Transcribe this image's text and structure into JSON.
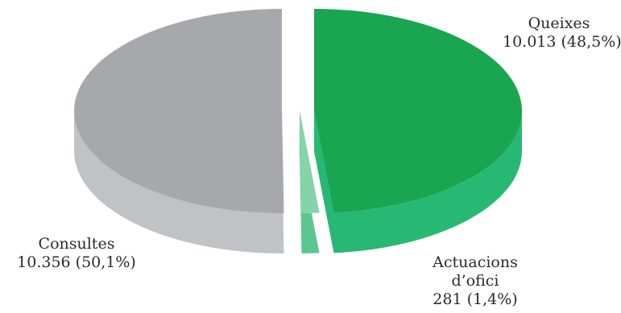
{
  "chart_data": {
    "type": "pie",
    "style": "3d-exploded",
    "slices": [
      {
        "name": "Queixes",
        "value": 10013,
        "value_label": "10.013 (48,5%)",
        "percent": 48.5,
        "color": "#1aa551",
        "side_color": "#27b874"
      },
      {
        "name": "Actuacions d’ofici",
        "name_line1": "Actuacions",
        "name_line2": "d’ofici",
        "value": 281,
        "value_label": "281 (1,4%)",
        "percent": 1.4,
        "color": "#86d3a9",
        "side_color": "#5cc691"
      },
      {
        "name": "Consultes",
        "value": 10356,
        "value_label": "10.356 (50,1%)",
        "percent": 50.1,
        "color": "#a7a8ab",
        "side_color": "#c1c2c5"
      }
    ]
  }
}
